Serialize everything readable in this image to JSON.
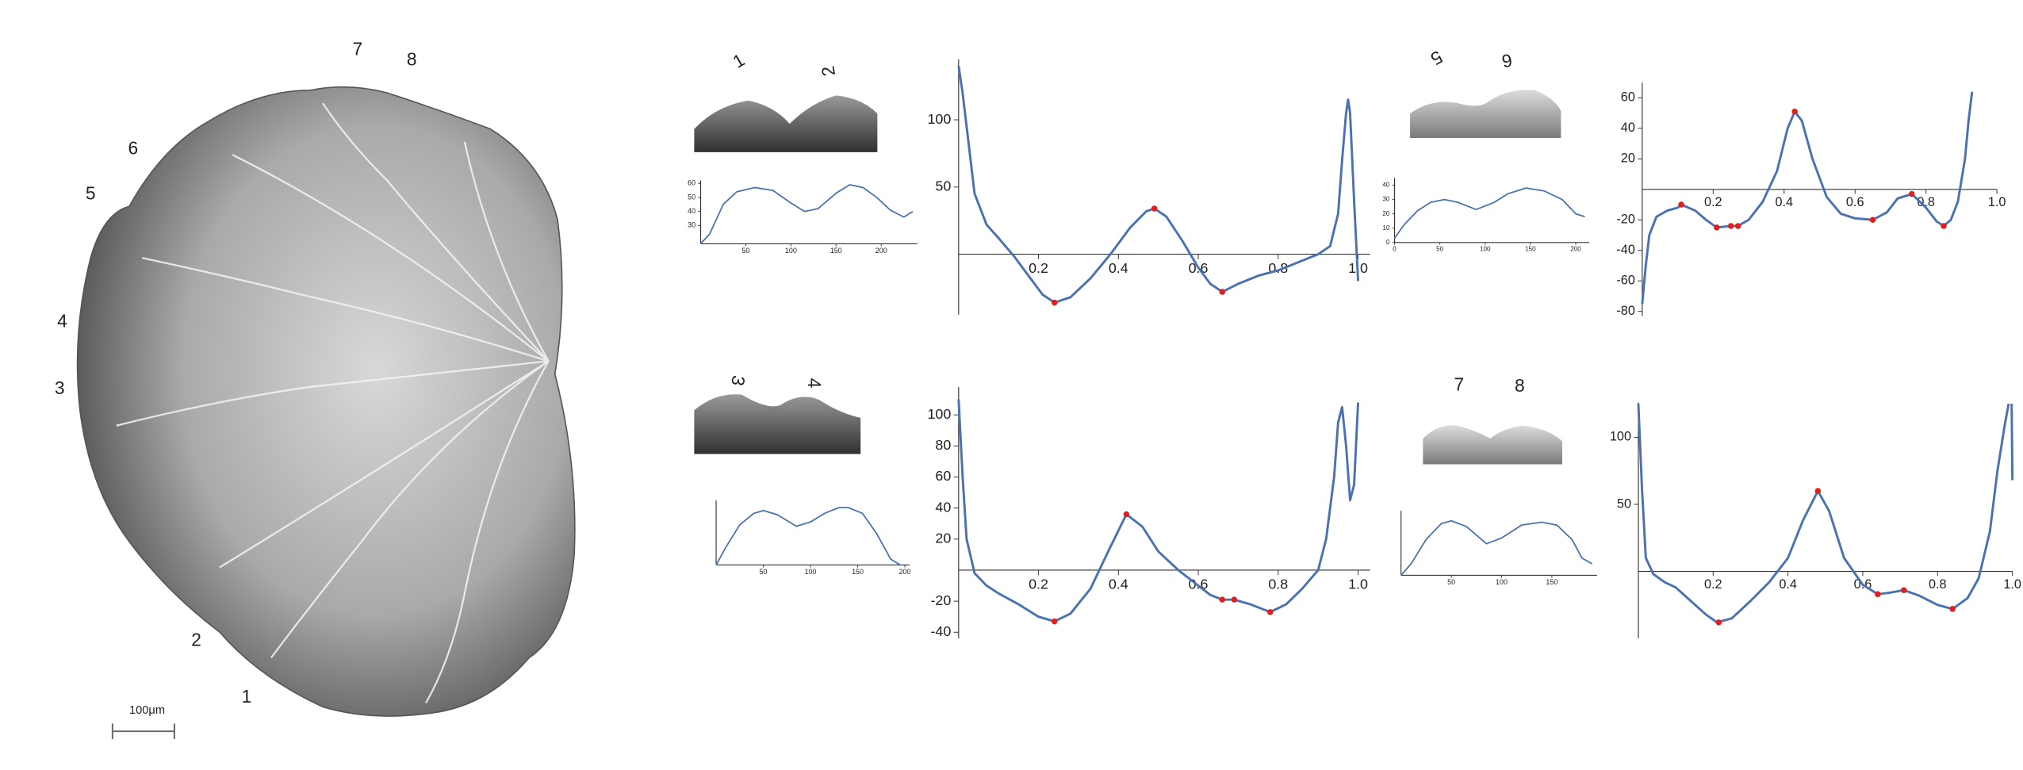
{
  "specimen": {
    "labels": [
      "1",
      "2",
      "3",
      "4",
      "5",
      "6",
      "7",
      "8"
    ],
    "scale_bar": "100μm"
  },
  "thumbnails": [
    {
      "labels": [
        "1",
        "2"
      ]
    },
    {
      "labels": [
        "5",
        "6"
      ]
    },
    {
      "labels": [
        "3",
        "4"
      ]
    },
    {
      "labels": [
        "7",
        "8"
      ]
    }
  ],
  "chart_data": [
    {
      "type": "line",
      "color": "#4a72b0",
      "x": [
        0,
        10,
        25,
        40,
        60,
        80,
        100,
        115,
        130,
        150,
        165,
        180,
        195,
        210,
        225,
        235
      ],
      "values": [
        17,
        24,
        45,
        54,
        57,
        55,
        46,
        40,
        42,
        53,
        59,
        57,
        50,
        41,
        36,
        40
      ],
      "xlim": [
        0,
        240
      ],
      "ylim": [
        17,
        62
      ],
      "xticks": [
        50,
        100,
        150,
        200
      ],
      "yticks": [
        30,
        40,
        50,
        60
      ]
    },
    {
      "type": "line",
      "color": "#4a72b0",
      "x": [
        0,
        0.01,
        0.02,
        0.04,
        0.07,
        0.1,
        0.14,
        0.18,
        0.21,
        0.24,
        0.28,
        0.33,
        0.38,
        0.43,
        0.47,
        0.49,
        0.52,
        0.56,
        0.6,
        0.63,
        0.66,
        0.7,
        0.75,
        0.8,
        0.85,
        0.9,
        0.93,
        0.95,
        0.96,
        0.97,
        0.975,
        0.98,
        0.99,
        1.0
      ],
      "values": [
        140,
        120,
        95,
        45,
        22,
        12,
        -2,
        -18,
        -30,
        -36,
        -32,
        -18,
        0,
        20,
        32,
        34,
        28,
        10,
        -10,
        -22,
        -28,
        -22,
        -16,
        -12,
        -6,
        0,
        6,
        30,
        70,
        105,
        115,
        105,
        40,
        -20
      ],
      "markers": {
        "x": [
          0.24,
          0.49,
          0.66
        ],
        "values": [
          -36,
          34,
          -28
        ],
        "color": "#e0201c"
      },
      "xlim": [
        0,
        1.03
      ],
      "ylim": [
        -45,
        145
      ],
      "xticks": [
        0.2,
        0.4,
        0.6,
        0.8,
        {
          "value": 1,
          "label": "1.0"
        }
      ],
      "yticks": [
        50,
        100
      ]
    },
    {
      "type": "line",
      "color": "#4a72b0",
      "x": [
        0,
        10,
        25,
        40,
        55,
        70,
        90,
        110,
        125,
        145,
        165,
        185,
        200,
        210
      ],
      "values": [
        3,
        12,
        22,
        28,
        30,
        28,
        23,
        28,
        34,
        38,
        36,
        30,
        20,
        18
      ],
      "xlim": [
        0,
        215
      ],
      "ylim": [
        0,
        45
      ],
      "xticks": [
        0,
        50,
        100,
        150,
        200
      ],
      "yticks": [
        0,
        10,
        20,
        30,
        40
      ]
    },
    {
      "type": "line",
      "color": "#4a72b0",
      "x": [
        0,
        0.01,
        0.02,
        0.04,
        0.07,
        0.1,
        0.11,
        0.15,
        0.18,
        0.21,
        0.25,
        0.27,
        0.3,
        0.34,
        0.38,
        0.41,
        0.43,
        0.45,
        0.48,
        0.52,
        0.56,
        0.6,
        0.65,
        0.69,
        0.72,
        0.76,
        0.8,
        0.83,
        0.85,
        0.87,
        0.89,
        0.91,
        0.92,
        0.93
      ],
      "values": [
        -75,
        -50,
        -30,
        -18,
        -14,
        -12,
        -10,
        -14,
        -20,
        -25,
        -24,
        -24,
        -20,
        -8,
        12,
        40,
        51,
        45,
        20,
        -5,
        -16,
        -19,
        -20,
        -15,
        -6,
        -3,
        -12,
        -21,
        -24,
        -20,
        -8,
        20,
        45,
        64
      ],
      "markers": {
        "x": [
          0.11,
          0.21,
          0.25,
          0.27,
          0.43,
          0.65,
          0.76,
          0.85
        ],
        "values": [
          -10,
          -25,
          -24,
          -24,
          51,
          -20,
          -3,
          -24
        ],
        "color": "#e0201c"
      },
      "xlim": [
        0,
        1.0
      ],
      "ylim": [
        -83,
        70
      ],
      "xticks": [
        0.2,
        0.4,
        0.6,
        0.8,
        {
          "value": 1,
          "label": "1.0"
        }
      ],
      "yticks": [
        -80,
        -60,
        -40,
        -20,
        20,
        40,
        60
      ]
    },
    {
      "type": "line",
      "color": "#4a72b0",
      "x": [
        0,
        10,
        25,
        40,
        50,
        65,
        85,
        100,
        115,
        130,
        140,
        155,
        170,
        185,
        195
      ],
      "values": [
        0,
        12,
        28,
        36,
        38,
        35,
        27,
        30,
        36,
        40,
        40,
        36,
        22,
        4,
        0
      ],
      "xlim": [
        0,
        205
      ],
      "ylim": [
        0,
        45
      ],
      "xticks": [
        50,
        100,
        150,
        200
      ]
    },
    {
      "type": "line",
      "color": "#4a72b0",
      "x": [
        0,
        0.01,
        0.02,
        0.04,
        0.07,
        0.1,
        0.15,
        0.2,
        0.24,
        0.28,
        0.33,
        0.38,
        0.42,
        0.46,
        0.5,
        0.55,
        0.6,
        0.63,
        0.66,
        0.69,
        0.73,
        0.78,
        0.82,
        0.86,
        0.9,
        0.92,
        0.94,
        0.95,
        0.96,
        0.97,
        0.98,
        0.99,
        1.0
      ],
      "values": [
        110,
        60,
        20,
        -2,
        -10,
        -15,
        -22,
        -30,
        -33,
        -28,
        -12,
        15,
        36,
        28,
        12,
        0,
        -10,
        -16,
        -19,
        -19,
        -22,
        -27,
        -22,
        -12,
        0,
        20,
        60,
        95,
        105,
        80,
        45,
        55,
        108
      ],
      "markers": {
        "x": [
          0.24,
          0.42,
          0.66,
          0.69,
          0.78
        ],
        "values": [
          -33,
          36,
          -19,
          -19,
          -27
        ],
        "color": "#e0201c"
      },
      "xlim": [
        0,
        1.03
      ],
      "ylim": [
        -44,
        118
      ],
      "xticks": [
        0.2,
        0.4,
        0.6,
        0.8,
        {
          "value": 1,
          "label": "1.0"
        }
      ],
      "yticks": [
        -40,
        -20,
        20,
        40,
        60,
        80,
        100
      ]
    },
    {
      "type": "line",
      "color": "#4a72b0",
      "x": [
        0,
        10,
        25,
        40,
        50,
        65,
        85,
        100,
        120,
        140,
        155,
        170,
        180,
        190
      ],
      "values": [
        0,
        8,
        25,
        36,
        38,
        34,
        22,
        26,
        35,
        37,
        35,
        25,
        12,
        8
      ],
      "xlim": [
        0,
        195
      ],
      "ylim": [
        0,
        45
      ],
      "xticks": [
        50,
        100,
        150
      ]
    },
    {
      "type": "line",
      "color": "#4a72b0",
      "x": [
        0,
        0.01,
        0.02,
        0.04,
        0.07,
        0.1,
        0.14,
        0.18,
        0.21,
        0.25,
        0.3,
        0.35,
        0.4,
        0.44,
        0.48,
        0.51,
        0.55,
        0.6,
        0.64,
        0.67,
        0.71,
        0.75,
        0.8,
        0.84,
        0.88,
        0.91,
        0.94,
        0.96,
        0.98,
        0.99,
        0.994,
        0.998,
        1.0
      ],
      "values": [
        125,
        60,
        10,
        -2,
        -8,
        -12,
        -22,
        -32,
        -38,
        -35,
        -22,
        -8,
        10,
        38,
        60,
        45,
        10,
        -10,
        -17,
        -16,
        -14,
        -18,
        -25,
        -28,
        -20,
        -5,
        30,
        75,
        110,
        125,
        null,
        125,
        68
      ],
      "markers": {
        "x": [
          0.215,
          0.48,
          0.64,
          0.71,
          0.84
        ],
        "values": [
          -38,
          60,
          -17,
          -14,
          -28
        ],
        "color": "#e0201c"
      },
      "xlim": [
        0,
        1.0
      ],
      "ylim": [
        -50,
        126
      ],
      "xticks": [
        0.2,
        0.4,
        0.6,
        0.8,
        {
          "value": 1,
          "label": "1.0"
        }
      ],
      "yticks": [
        50,
        100
      ]
    }
  ]
}
